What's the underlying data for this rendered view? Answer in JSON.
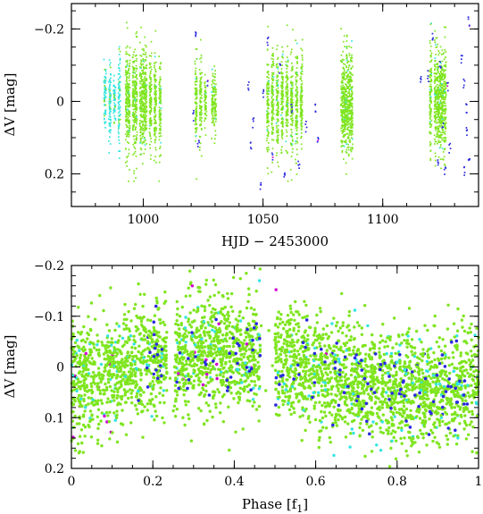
{
  "chart_data": [
    {
      "type": "scatter",
      "xlabel": "HJD − 2453000",
      "ylabel": "ΔV [mag]",
      "xlim": [
        970,
        1140
      ],
      "ylim": [
        0.29,
        -0.27
      ],
      "xticks_major": [
        1000,
        1050,
        1100
      ],
      "xticks_labels": [
        "1000",
        "1050",
        "1100"
      ],
      "xticks_minor_step": 10,
      "yticks_major": [
        -0.2,
        0.0,
        0.2
      ],
      "yticks_labels": [
        "−0.2",
        "0",
        "0.2"
      ],
      "yticks_minor_step": 0.05,
      "series_colors": [
        "#7fe51f",
        "#33e5e0",
        "#2a2ae0",
        "#d000d0"
      ],
      "observing_runs_hjd": [
        [
          984,
          1008
        ],
        [
          1020,
          1031
        ],
        [
          1044,
          1073
        ],
        [
          1083,
          1089
        ],
        [
          1117,
          1136
        ]
      ],
      "y_range_mag": [
        -0.22,
        0.22
      ]
    },
    {
      "type": "scatter",
      "xlabel": "Phase [f",
      "xlabel_sub": "1",
      "xlabel_end": "]",
      "ylabel": "ΔV [mag]",
      "xlim": [
        0,
        1
      ],
      "ylim": [
        0.2,
        -0.2
      ],
      "xticks_major": [
        0,
        0.2,
        0.4,
        0.6,
        0.8,
        1
      ],
      "xticks_labels": [
        "0",
        "0.2",
        "0.4",
        "0.6",
        "0.8",
        "1"
      ],
      "xticks_minor_step": 0.05,
      "yticks_major": [
        -0.2,
        -0.1,
        0,
        0.1,
        0.2
      ],
      "yticks_labels": [
        "−0.2",
        "−0.1",
        "0",
        "0.1",
        "0.2"
      ],
      "yticks_minor_step": 0.02,
      "series_colors": [
        "#7fe51f",
        "#33e5e0",
        "#2a2ae0",
        "#d000d0"
      ],
      "phase_gaps": [
        [
          0.235,
          0.255
        ],
        [
          0.465,
          0.5
        ]
      ],
      "mean_level_mag": [
        0.0,
        0.02,
        0.04,
        0.06
      ]
    }
  ]
}
